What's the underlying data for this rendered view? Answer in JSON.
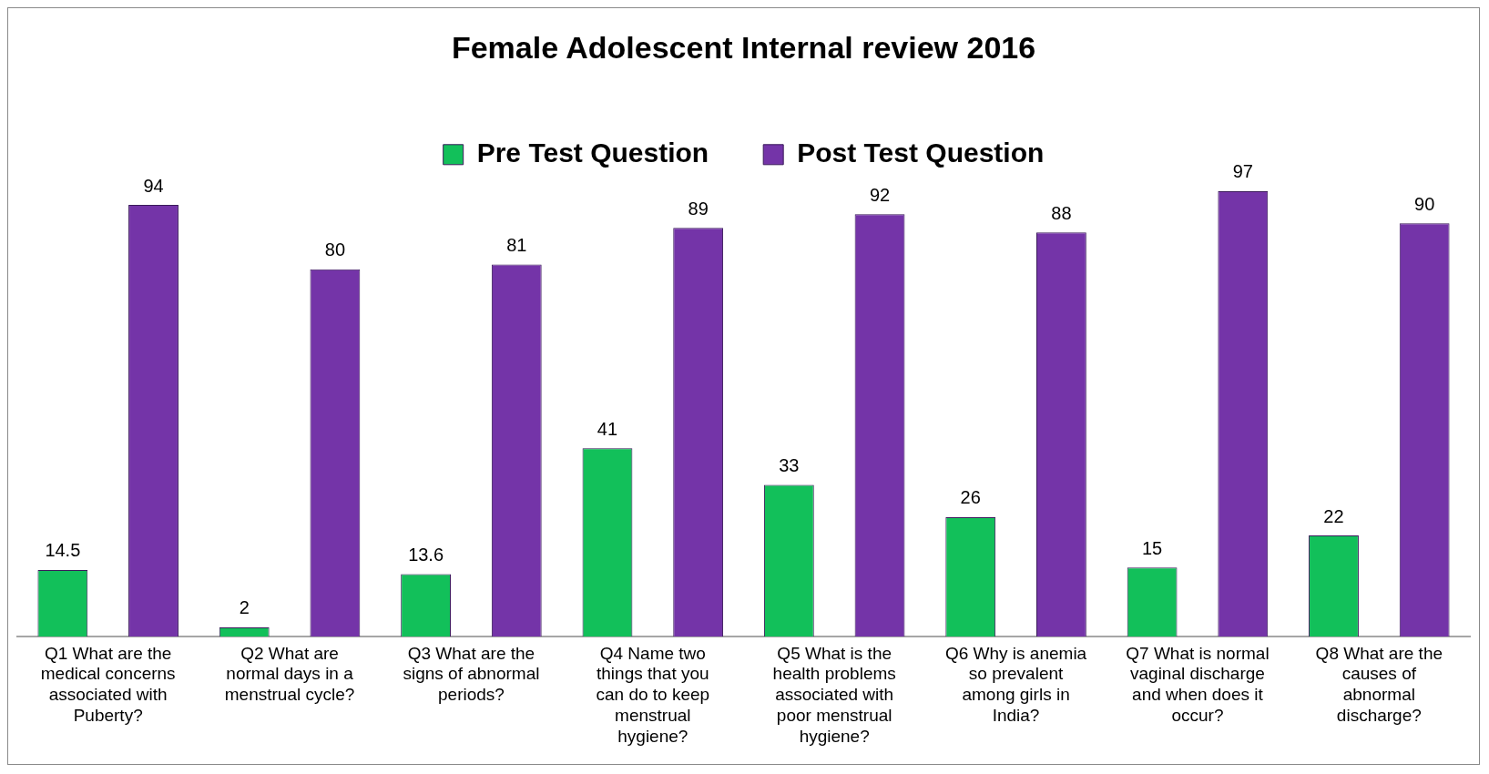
{
  "chart_data": {
    "type": "bar",
    "title": "Female Adolescent Internal review 2016",
    "categories": [
      "Q1 What are the medical concerns associated with Puberty?",
      "Q2 What are normal days in a menstrual cycle?",
      "Q3 What are the signs of abnormal periods?",
      "Q4 Name two things that you can do to keep menstrual hygiene?",
      "Q5 What is the health problems associated with poor menstrual hygiene?",
      "Q6 Why is anemia so prevalent among girls in India?",
      "Q7 What is normal vaginal discharge and when does it occur?",
      "Q8 What are the causes of abnormal discharge?"
    ],
    "series": [
      {
        "name": "Pre Test Question",
        "color": "#12c05a",
        "values": [
          14.5,
          2,
          13.6,
          41,
          33,
          26,
          15,
          22
        ]
      },
      {
        "name": "Post Test Question",
        "color": "#7434a8",
        "values": [
          94,
          80,
          81,
          89,
          92,
          88,
          97,
          90
        ]
      }
    ],
    "data_labels": true,
    "legend": "top",
    "grid": false
  }
}
